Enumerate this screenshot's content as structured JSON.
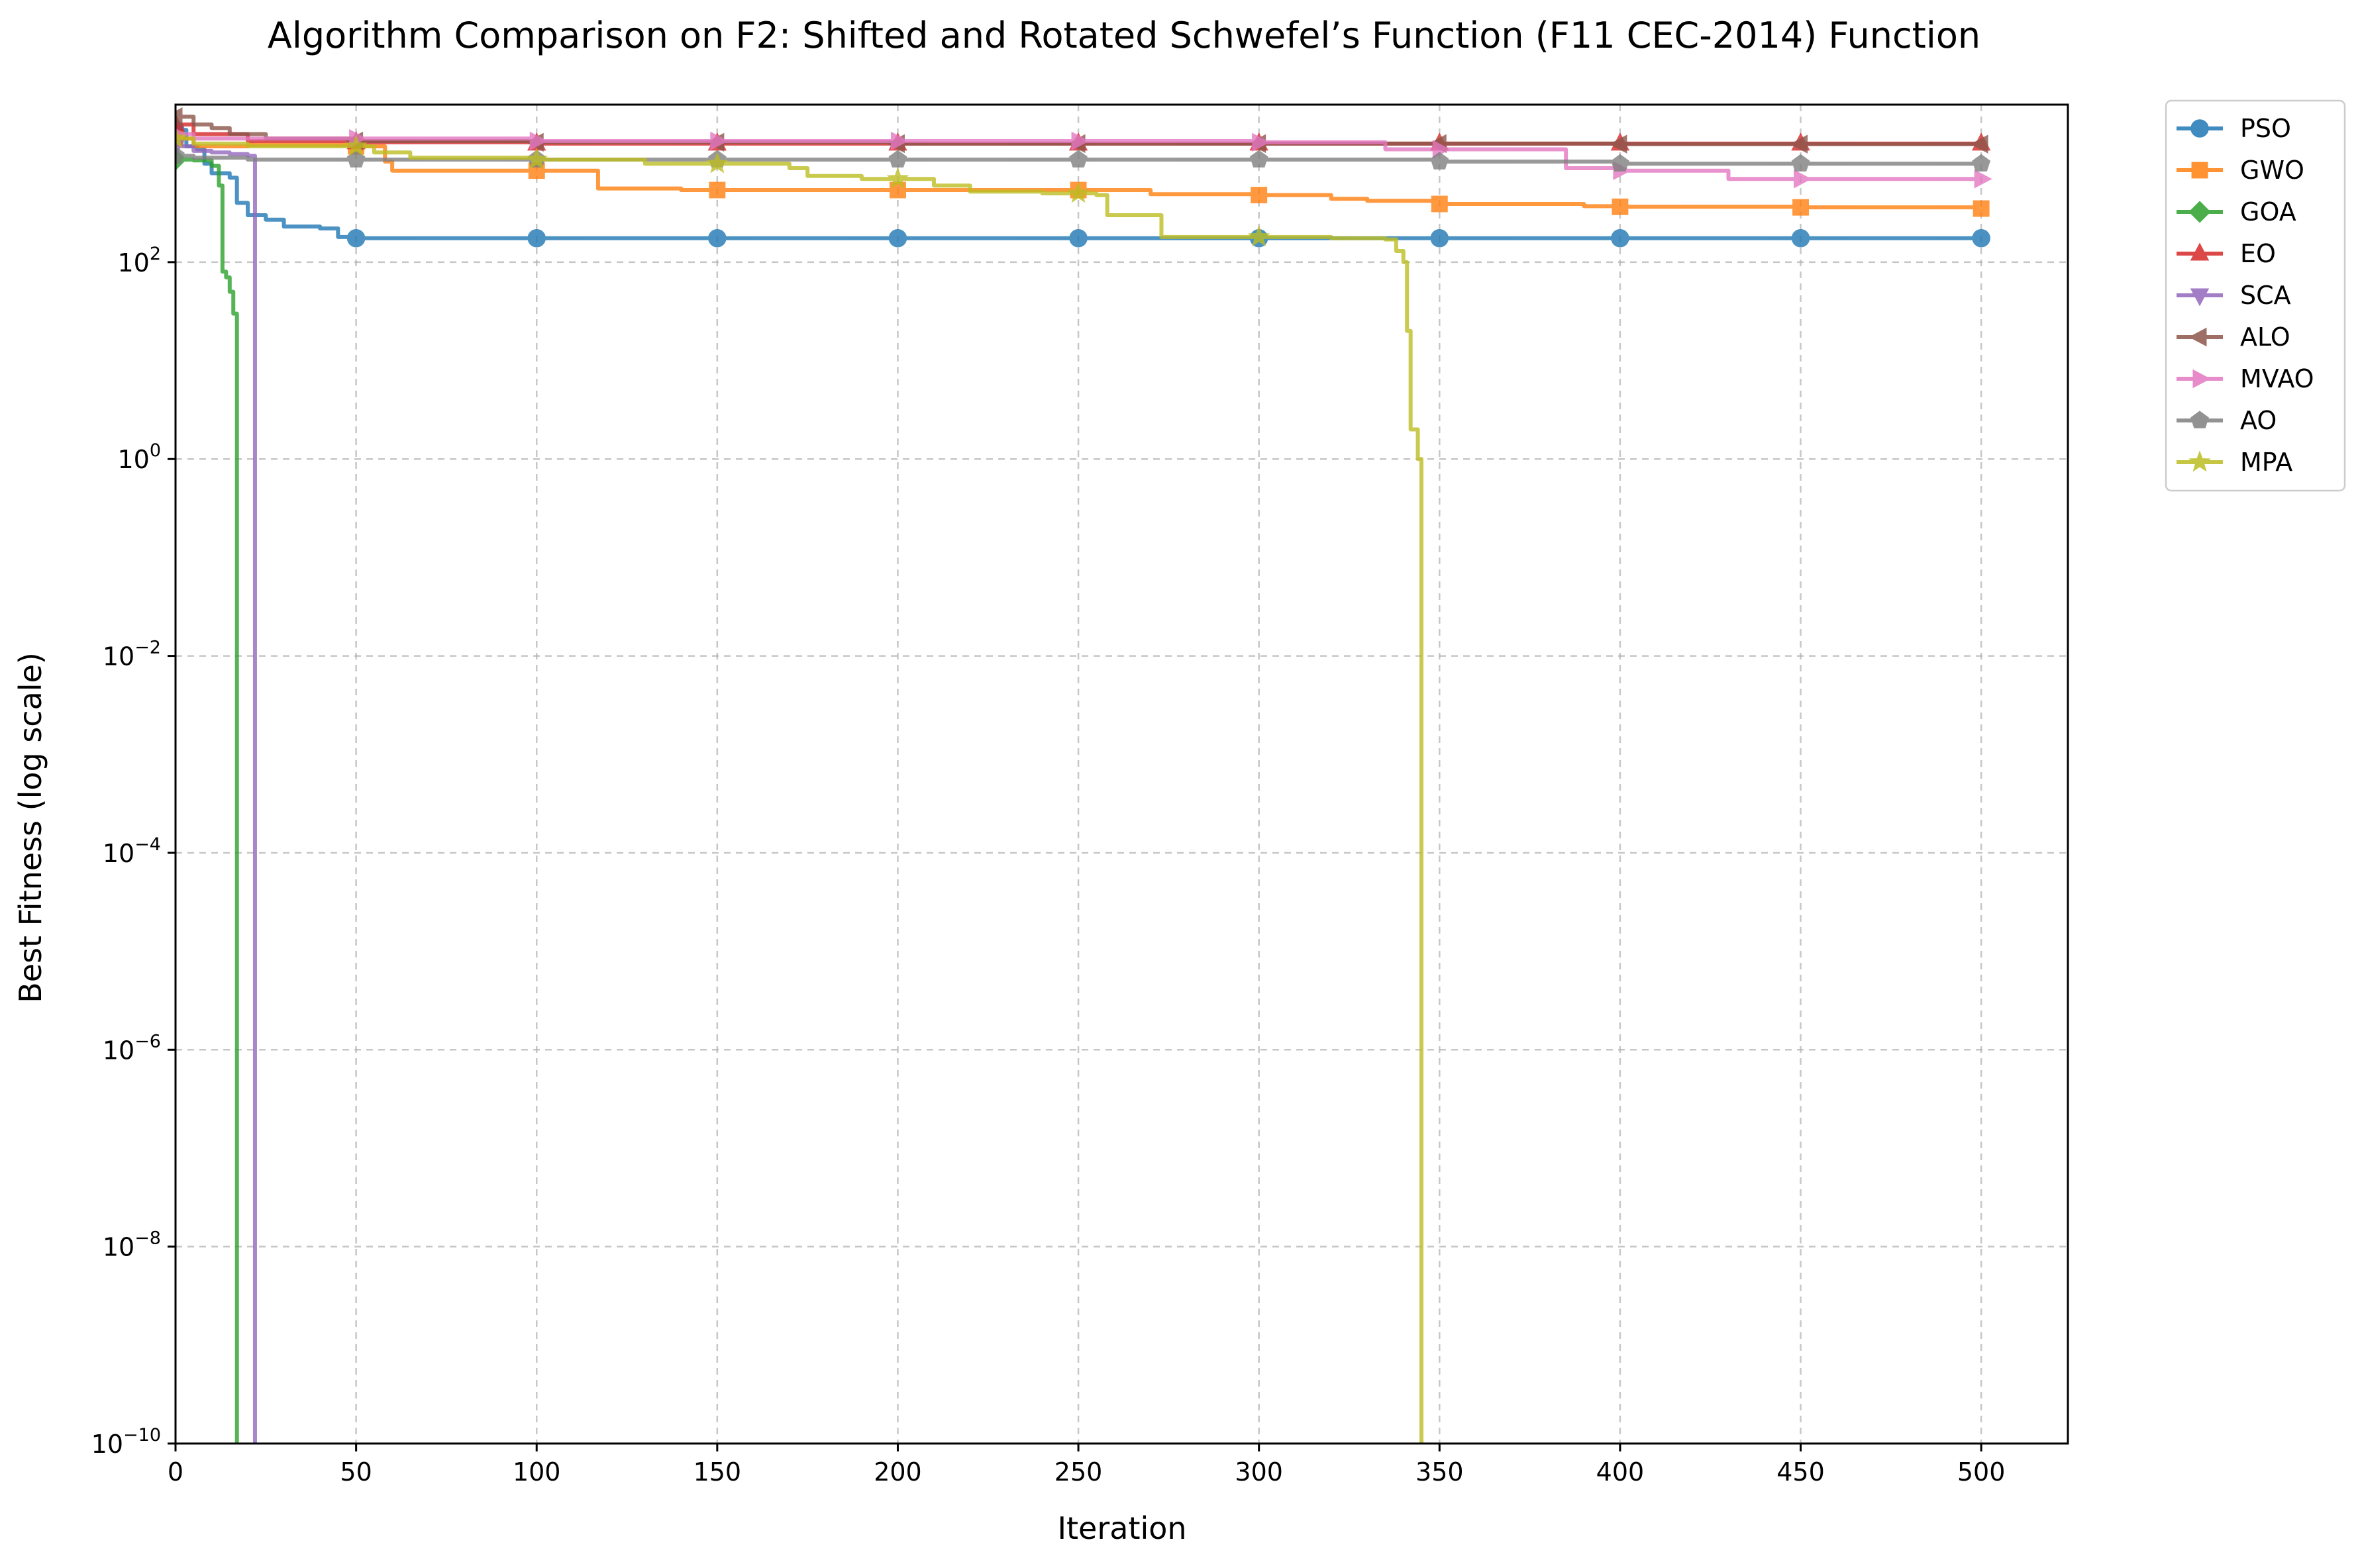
{
  "chart_data": {
    "type": "line",
    "title": "Algorithm Comparison on F2: Shifted and Rotated Schwefel’s Function (F11 CEC-2014) Function",
    "xlabel": "Iteration",
    "ylabel": "Best Fitness (log scale)",
    "xlim": [
      0,
      524
    ],
    "ylim_log10": [
      -10,
      3.6
    ],
    "y_scale": "log",
    "x_ticks": [
      0,
      50,
      100,
      150,
      200,
      250,
      300,
      350,
      400,
      450,
      500
    ],
    "y_ticks": [
      {
        "base": "10",
        "exp": "−10",
        "log": -10
      },
      {
        "base": "10",
        "exp": "−8",
        "log": -8
      },
      {
        "base": "10",
        "exp": "−6",
        "log": -6
      },
      {
        "base": "10",
        "exp": "−4",
        "log": -4
      },
      {
        "base": "10",
        "exp": "−2",
        "log": -2
      },
      {
        "base": "10",
        "exp": "0",
        "log": 0
      },
      {
        "base": "10",
        "exp": "2",
        "log": 2
      }
    ],
    "grid": true,
    "legend_position": "outside-top-right",
    "marker_every": 50,
    "series": [
      {
        "name": "PSO",
        "color": "#1f77b4",
        "marker": "circle",
        "points": [
          [
            0,
            2200
          ],
          [
            3,
            1500
          ],
          [
            6,
            1400
          ],
          [
            8,
            1000
          ],
          [
            10,
            800
          ],
          [
            15,
            720
          ],
          [
            17,
            400
          ],
          [
            20,
            300
          ],
          [
            25,
            270
          ],
          [
            30,
            230
          ],
          [
            40,
            220
          ],
          [
            45,
            180
          ],
          [
            50,
            175
          ],
          [
            500,
            175
          ]
        ]
      },
      {
        "name": "GWO",
        "color": "#ff7f0e",
        "marker": "square",
        "points": [
          [
            0,
            1800
          ],
          [
            5,
            1500
          ],
          [
            20,
            1550
          ],
          [
            50,
            1500
          ],
          [
            58,
            1050
          ],
          [
            60,
            850
          ],
          [
            100,
            850
          ],
          [
            115,
            850
          ],
          [
            117,
            560
          ],
          [
            140,
            540
          ],
          [
            150,
            540
          ],
          [
            200,
            540
          ],
          [
            250,
            540
          ],
          [
            270,
            490
          ],
          [
            300,
            480
          ],
          [
            320,
            440
          ],
          [
            330,
            420
          ],
          [
            350,
            390
          ],
          [
            390,
            370
          ],
          [
            400,
            365
          ],
          [
            450,
            360
          ],
          [
            500,
            350
          ]
        ]
      },
      {
        "name": "GOA",
        "color": "#2ca02c",
        "marker": "diamond",
        "points": [
          [
            0,
            1100
          ],
          [
            5,
            1080
          ],
          [
            10,
            950
          ],
          [
            12,
            600
          ],
          [
            13,
            80
          ],
          [
            14,
            70
          ],
          [
            15,
            50
          ],
          [
            16,
            30
          ],
          [
            17,
            30
          ],
          [
            17,
            1e-10
          ]
        ]
      },
      {
        "name": "EO",
        "color": "#d62728",
        "marker": "triangle-up",
        "points": [
          [
            0,
            2500
          ],
          [
            5,
            2000
          ],
          [
            20,
            1700
          ],
          [
            50,
            1650
          ],
          [
            100,
            1600
          ],
          [
            200,
            1600
          ],
          [
            300,
            1600
          ],
          [
            350,
            1600
          ],
          [
            400,
            1600
          ],
          [
            450,
            1600
          ],
          [
            500,
            1600
          ]
        ]
      },
      {
        "name": "SCA",
        "color": "#9467bd",
        "marker": "triangle-down",
        "points": [
          [
            0,
            1500
          ],
          [
            5,
            1350
          ],
          [
            10,
            1300
          ],
          [
            15,
            1250
          ],
          [
            20,
            1200
          ],
          [
            22,
            1200
          ],
          [
            22,
            1e-10
          ]
        ]
      },
      {
        "name": "ALO",
        "color": "#8c564b",
        "marker": "triangle-left",
        "points": [
          [
            0,
            3000
          ],
          [
            5,
            2500
          ],
          [
            10,
            2300
          ],
          [
            15,
            2000
          ],
          [
            25,
            1800
          ],
          [
            50,
            1700
          ],
          [
            100,
            1650
          ],
          [
            200,
            1600
          ],
          [
            300,
            1600
          ],
          [
            400,
            1580
          ],
          [
            500,
            1580
          ]
        ]
      },
      {
        "name": "MVAO",
        "color": "#e377c2",
        "marker": "triangle-right",
        "points": [
          [
            0,
            2000
          ],
          [
            5,
            1800
          ],
          [
            20,
            1800
          ],
          [
            50,
            1800
          ],
          [
            100,
            1700
          ],
          [
            150,
            1700
          ],
          [
            200,
            1700
          ],
          [
            300,
            1650
          ],
          [
            335,
            1400
          ],
          [
            350,
            1400
          ],
          [
            380,
            1400
          ],
          [
            385,
            900
          ],
          [
            400,
            850
          ],
          [
            430,
            700
          ],
          [
            450,
            700
          ],
          [
            500,
            700
          ]
        ]
      },
      {
        "name": "AO",
        "color": "#7f7f7f",
        "marker": "pentagon",
        "points": [
          [
            0,
            1200
          ],
          [
            5,
            1150
          ],
          [
            20,
            1100
          ],
          [
            50,
            1100
          ],
          [
            100,
            1100
          ],
          [
            150,
            1100
          ],
          [
            200,
            1100
          ],
          [
            250,
            1100
          ],
          [
            300,
            1100
          ],
          [
            350,
            1050
          ],
          [
            400,
            1000
          ],
          [
            450,
            1000
          ],
          [
            500,
            1000
          ]
        ]
      },
      {
        "name": "MPA",
        "color": "#bcbd22",
        "marker": "star",
        "points": [
          [
            0,
            1800
          ],
          [
            5,
            1600
          ],
          [
            20,
            1500
          ],
          [
            40,
            1500
          ],
          [
            55,
            1300
          ],
          [
            65,
            1150
          ],
          [
            100,
            1100
          ],
          [
            125,
            1100
          ],
          [
            130,
            1000
          ],
          [
            150,
            1000
          ],
          [
            170,
            900
          ],
          [
            175,
            750
          ],
          [
            190,
            700
          ],
          [
            200,
            700
          ],
          [
            210,
            600
          ],
          [
            220,
            520
          ],
          [
            240,
            500
          ],
          [
            250,
            500
          ],
          [
            255,
            480
          ],
          [
            258,
            300
          ],
          [
            270,
            300
          ],
          [
            273,
            180
          ],
          [
            300,
            180
          ],
          [
            320,
            175
          ],
          [
            335,
            170
          ],
          [
            338,
            130
          ],
          [
            340,
            100
          ],
          [
            341,
            20
          ],
          [
            342,
            2
          ],
          [
            344,
            1
          ],
          [
            345,
            0.8
          ],
          [
            345,
            1e-10
          ]
        ]
      }
    ]
  }
}
